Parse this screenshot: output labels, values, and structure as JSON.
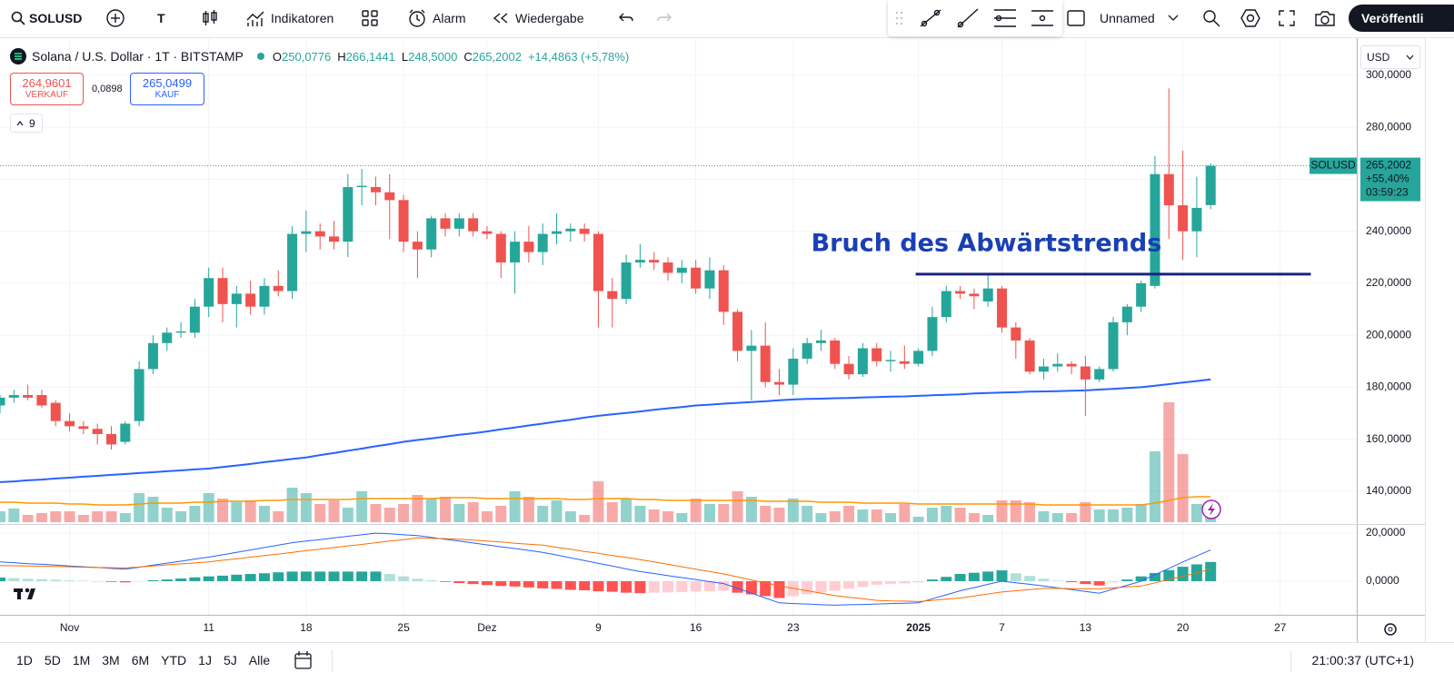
{
  "toolbar": {
    "symbol": "SOLUSD",
    "interval": "T",
    "indicators": "Indikatoren",
    "alert": "Alarm",
    "replay": "Wiedergabe",
    "layout_name": "Unnamed",
    "publish": "Veröffentli"
  },
  "legend": {
    "ohlc": [
      {
        "label": "O",
        "value": "250,0776"
      },
      {
        "label": "H",
        "value": "266,1441"
      },
      {
        "label": "L",
        "value": "248,5000"
      },
      {
        "label": "C",
        "value": "265,2002"
      }
    ],
    "change": "+14,4863 (+5,78%)",
    "indicator_count": "9"
  },
  "quote": {
    "bid": "264,9601",
    "bid_label": "VERKAUF",
    "spread": "0,0898",
    "ask": "265,0499",
    "ask_label": "KAUF"
  },
  "currency": "USD",
  "timeframes": [
    "1D",
    "5D",
    "1M",
    "3M",
    "6M",
    "YTD",
    "1J",
    "5J",
    "Alle"
  ],
  "clock": "21:00:37 (UTC+1)",
  "chart_data": {
    "type": "candlestick",
    "title": "Solana / U.S. Dollar · 1T · BITSTAMP",
    "up_color": "#26a69a",
    "down_color": "#ef5350",
    "candles": [
      [
        173,
        177,
        170,
        176
      ],
      [
        176,
        179,
        174,
        177
      ],
      [
        177,
        181,
        175,
        176
      ],
      [
        177,
        179,
        172,
        173
      ],
      [
        174,
        175,
        165,
        167
      ],
      [
        167,
        170,
        163,
        165
      ],
      [
        165,
        167,
        162,
        164
      ],
      [
        164,
        166,
        158,
        162
      ],
      [
        162,
        165,
        156,
        158
      ],
      [
        159,
        167,
        158,
        166
      ],
      [
        167,
        190,
        165,
        187
      ],
      [
        187,
        200,
        185,
        197
      ],
      [
        197,
        203,
        194,
        201
      ],
      [
        201,
        205,
        199,
        201.5
      ],
      [
        201,
        214,
        199,
        211
      ],
      [
        211,
        226,
        207,
        222
      ],
      [
        222,
        226,
        205,
        212
      ],
      [
        212,
        219,
        203,
        216
      ],
      [
        216,
        221,
        208,
        211
      ],
      [
        211,
        222,
        208,
        219
      ],
      [
        219,
        225,
        215,
        217
      ],
      [
        217,
        242,
        214,
        239
      ],
      [
        239,
        248,
        232,
        240
      ],
      [
        240,
        243,
        233,
        238
      ],
      [
        238,
        244,
        233,
        236
      ],
      [
        236,
        262,
        230,
        257
      ],
      [
        257,
        264,
        250,
        257.5
      ],
      [
        257,
        261,
        250,
        255
      ],
      [
        255,
        262,
        237,
        252
      ],
      [
        252,
        254,
        232,
        236
      ],
      [
        236,
        240,
        222,
        233
      ],
      [
        233,
        246,
        230,
        245
      ],
      [
        245,
        247,
        238,
        241
      ],
      [
        241,
        247,
        238,
        245
      ],
      [
        245,
        247,
        238,
        240
      ],
      [
        240,
        242,
        237,
        239
      ],
      [
        239,
        240,
        222,
        228
      ],
      [
        228,
        240,
        216,
        236
      ],
      [
        236,
        242,
        228,
        232
      ],
      [
        232,
        243,
        227,
        239
      ],
      [
        239,
        247,
        235,
        240
      ],
      [
        240,
        243,
        236,
        241
      ],
      [
        241,
        243,
        236,
        239
      ],
      [
        239,
        240,
        203,
        217
      ],
      [
        217,
        222,
        203,
        214
      ],
      [
        214,
        231,
        212,
        228
      ],
      [
        228,
        235,
        226,
        229
      ],
      [
        229,
        232,
        225,
        228
      ],
      [
        228,
        230,
        221,
        224
      ],
      [
        224,
        229,
        220,
        226
      ],
      [
        226,
        229,
        216,
        218
      ],
      [
        218,
        230,
        214,
        225
      ],
      [
        225,
        227,
        204,
        209
      ],
      [
        209,
        210,
        190,
        194
      ],
      [
        194,
        202,
        175,
        196
      ],
      [
        196,
        205,
        180,
        182
      ],
      [
        182,
        187,
        177,
        181
      ],
      [
        181,
        195,
        177,
        191
      ],
      [
        191,
        199,
        189,
        197
      ],
      [
        197,
        202,
        194,
        198
      ],
      [
        198,
        199,
        187,
        189
      ],
      [
        189,
        192,
        183,
        185
      ],
      [
        185,
        197,
        184,
        195
      ],
      [
        195,
        197,
        188,
        190
      ],
      [
        190,
        194,
        186,
        190.5
      ],
      [
        190,
        196,
        187,
        189
      ],
      [
        189,
        195,
        188,
        194
      ],
      [
        194,
        211,
        192,
        207
      ],
      [
        207,
        219,
        205,
        217
      ],
      [
        217,
        219,
        214,
        216
      ],
      [
        216,
        218,
        210,
        215
      ],
      [
        213,
        223,
        211,
        218
      ],
      [
        218,
        219,
        201,
        203
      ],
      [
        203,
        205,
        191,
        198
      ],
      [
        198,
        199,
        185,
        186
      ],
      [
        186,
        191,
        183,
        188
      ],
      [
        188,
        193,
        186,
        189
      ],
      [
        189,
        190,
        185,
        188
      ],
      [
        188,
        192,
        169,
        183
      ],
      [
        183,
        188,
        182,
        187
      ],
      [
        187,
        207,
        186,
        205
      ],
      [
        205,
        212,
        200,
        211
      ],
      [
        211,
        221,
        209,
        220
      ],
      [
        219,
        269,
        218,
        262
      ],
      [
        262,
        295,
        237,
        250
      ],
      [
        250,
        271,
        229,
        240
      ],
      [
        240,
        261,
        230,
        249
      ],
      [
        250.0776,
        266.1441,
        248.5,
        265.2002
      ]
    ],
    "xlim": [
      0,
      97.5
    ],
    "xticks": [
      {
        "value": 5,
        "label": "Nov"
      },
      {
        "value": 15,
        "label": "11"
      },
      {
        "value": 22,
        "label": "18"
      },
      {
        "value": 29,
        "label": "25"
      },
      {
        "value": 35,
        "label": "Dez"
      },
      {
        "value": 43,
        "label": "9"
      },
      {
        "value": 50,
        "label": "16"
      },
      {
        "value": 57,
        "label": "23"
      },
      {
        "value": 66,
        "label": "2025"
      },
      {
        "value": 72,
        "label": "7"
      },
      {
        "value": 78,
        "label": "13"
      },
      {
        "value": 85,
        "label": "20"
      },
      {
        "value": 92,
        "label": "27"
      }
    ],
    "ylim": [
      127.4,
      314.3
    ],
    "yticks": [
      {
        "value": 300,
        "label": "300,0000"
      },
      {
        "value": 280,
        "label": "280,0000"
      },
      {
        "value": 260,
        "label": "260,0000"
      },
      {
        "value": 240,
        "label": "240,0000"
      },
      {
        "value": 220,
        "label": "220,0000"
      },
      {
        "value": 200,
        "label": "200,0000"
      },
      {
        "value": 180,
        "label": "180,0000"
      },
      {
        "value": 160,
        "label": "160,0000"
      },
      {
        "value": 140,
        "label": "140,0000"
      }
    ],
    "grid": true,
    "ma": {
      "color": "#2962ff",
      "values": [
        143.5,
        143.8,
        144.2,
        144.5,
        144.9,
        145.2,
        145.6,
        145.9,
        146.3,
        146.6,
        147,
        147.3,
        147.7,
        148,
        148.4,
        148.7,
        149.3,
        149.9,
        150.5,
        151.2,
        151.8,
        152.4,
        153,
        153.9,
        154.7,
        155.6,
        156.4,
        157.3,
        158.1,
        159,
        159.7,
        160.3,
        161,
        161.7,
        162.3,
        163,
        163.8,
        164.5,
        165.3,
        166,
        166.8,
        167.5,
        168.3,
        169,
        169.6,
        170.1,
        170.7,
        171.3,
        171.9,
        172.4,
        173,
        173.3,
        173.7,
        174,
        174.3,
        174.6,
        175,
        175.3,
        175.5,
        175.6,
        175.8,
        175.9,
        176.1,
        176.2,
        176.4,
        176.5,
        176.7,
        176.9,
        177.1,
        177.3,
        177.6,
        177.8,
        178,
        178.1,
        178.3,
        178.4,
        178.5,
        178.7,
        178.8,
        179.1,
        179.4,
        179.7,
        180,
        180.6,
        181.2,
        181.8,
        182.4,
        183
      ]
    },
    "volume": {
      "values": [
        12,
        15,
        8,
        10,
        12,
        12,
        8,
        12,
        12,
        10,
        32,
        28,
        16,
        12,
        18,
        32,
        26,
        22,
        24,
        18,
        12,
        38,
        32,
        20,
        24,
        16,
        34,
        20,
        16,
        20,
        30,
        26,
        28,
        20,
        22,
        12,
        18,
        34,
        28,
        18,
        24,
        12,
        8,
        45,
        22,
        26,
        18,
        14,
        12,
        10,
        26,
        20,
        20,
        34,
        28,
        18,
        16,
        26,
        18,
        10,
        12,
        18,
        14,
        14,
        10,
        20,
        6,
        16,
        18,
        16,
        10,
        8,
        24,
        24,
        22,
        12,
        10,
        10,
        22,
        14,
        14,
        16,
        20,
        78,
        132,
        75,
        20,
        8
      ],
      "ma": [
        22,
        22,
        21,
        21,
        21,
        20,
        20,
        19,
        19,
        19,
        20,
        21,
        21,
        21,
        22,
        22,
        23,
        23,
        23,
        24,
        24,
        25,
        25,
        25,
        25,
        25,
        26,
        26,
        26,
        26,
        26,
        26,
        27,
        27,
        27,
        26,
        26,
        26,
        26,
        26,
        26,
        25,
        25,
        26,
        26,
        26,
        25,
        25,
        24,
        24,
        24,
        24,
        24,
        24,
        24,
        23,
        23,
        23,
        23,
        22,
        22,
        22,
        21,
        21,
        21,
        21,
        20,
        20,
        20,
        20,
        20,
        20,
        20,
        20,
        20,
        19,
        19,
        19,
        19,
        19,
        19,
        19,
        19,
        21,
        24,
        27,
        28,
        28
      ],
      "ma_color": "#ff9800"
    },
    "macd": {
      "ylim": [
        -14,
        23.8
      ],
      "yticks": [
        {
          "value": 20,
          "label": "20,0000"
        },
        {
          "value": 0,
          "label": "0,0000"
        }
      ],
      "macd_color": "#2962ff",
      "signal_color": "#ff6d00",
      "macd": [
        8,
        7.7,
        7.3,
        7,
        6.7,
        6.3,
        6,
        5.7,
        5.3,
        5,
        5.8,
        6.7,
        7.5,
        8.3,
        9.2,
        10,
        11,
        12,
        13,
        14,
        15,
        16,
        16.7,
        17.3,
        18,
        18.7,
        19.3,
        20,
        19.7,
        19.3,
        19,
        18.2,
        17.4,
        16.7,
        15.9,
        15.1,
        14.3,
        13.6,
        12.8,
        12,
        10.9,
        9.7,
        8.6,
        7.4,
        6.3,
        5.1,
        4,
        3.2,
        2.3,
        1.5,
        0.7,
        -0.2,
        -1,
        -3,
        -5,
        -7,
        -9,
        -9.3,
        -9.5,
        -9.8,
        -10,
        -9.8,
        -9.7,
        -9.5,
        -9.3,
        -9.2,
        -9,
        -7.3,
        -5.7,
        -4,
        -2.7,
        -1.3,
        0,
        -0.7,
        -1.3,
        -2,
        -2.8,
        -3.5,
        -4.3,
        -5,
        -3.3,
        -1.7,
        0,
        2.7,
        5.3,
        8,
        10.5,
        13
      ],
      "signal": [
        6.5,
        6.4,
        6.3,
        6.2,
        6.1,
        6,
        5.8,
        5.7,
        5.6,
        5.5,
        5.9,
        6.3,
        6.8,
        7.2,
        7.6,
        8,
        8.7,
        9.3,
        10,
        10.7,
        11.3,
        12,
        12.7,
        13.3,
        14,
        14.7,
        15.3,
        16,
        16.7,
        17.3,
        18,
        17.8,
        17.7,
        17.5,
        17.1,
        16.7,
        16.3,
        15.8,
        15.4,
        15,
        14.1,
        13.3,
        12.4,
        11.6,
        10.7,
        9.9,
        9,
        8,
        7,
        6,
        5,
        4,
        3,
        1.8,
        0.5,
        -0.8,
        -2,
        -3,
        -4,
        -5,
        -6,
        -6.7,
        -7.3,
        -8,
        -8.2,
        -8.3,
        -8.5,
        -8,
        -7.5,
        -7,
        -6.2,
        -5.3,
        -4.5,
        -4,
        -3.5,
        -3,
        -3,
        -3.1,
        -3.1,
        -3.2,
        -2.8,
        -2.4,
        -2,
        -0.7,
        0.7,
        2,
        3.5,
        5
      ],
      "histogram": [
        1.5,
        1.3,
        1,
        0.8,
        0.6,
        0.3,
        0.2,
        0,
        -0.3,
        -0.5,
        -0.1,
        0.4,
        0.7,
        1.1,
        1.6,
        2,
        2.3,
        2.7,
        3,
        3.3,
        3.7,
        4,
        4,
        4,
        4,
        4,
        4,
        4,
        3,
        2,
        1,
        0.4,
        -0.3,
        -0.8,
        -1.2,
        -1.6,
        -2,
        -2.2,
        -2.6,
        -3,
        -3.2,
        -3.6,
        -3.8,
        -4.2,
        -4.4,
        -4.8,
        -5,
        -4.8,
        -4.7,
        -4.5,
        -4.3,
        -4.2,
        -4,
        -4.8,
        -5.5,
        -6.2,
        -7,
        -6.3,
        -5.5,
        -4.8,
        -4,
        -3.1,
        -2.4,
        -1.5,
        -1.1,
        -0.9,
        -0.5,
        0.7,
        1.8,
        3,
        3.5,
        4,
        4.5,
        3.3,
        2.2,
        1,
        0.2,
        -0.4,
        -1.2,
        -1.8,
        -0.5,
        0.7,
        2,
        3.4,
        4.6,
        6,
        7,
        8
      ]
    },
    "annotation": {
      "text": "Bruch des Abwärtstrends",
      "value": 223.5,
      "x": [
        65.8,
        94.2
      ],
      "color": "#1a3fb5",
      "line_color": "#1a237e"
    },
    "last_price": {
      "symbol": "SOLUSD",
      "price": "265,2002",
      "change": "+55,40%",
      "countdown": "03:59:23"
    }
  }
}
